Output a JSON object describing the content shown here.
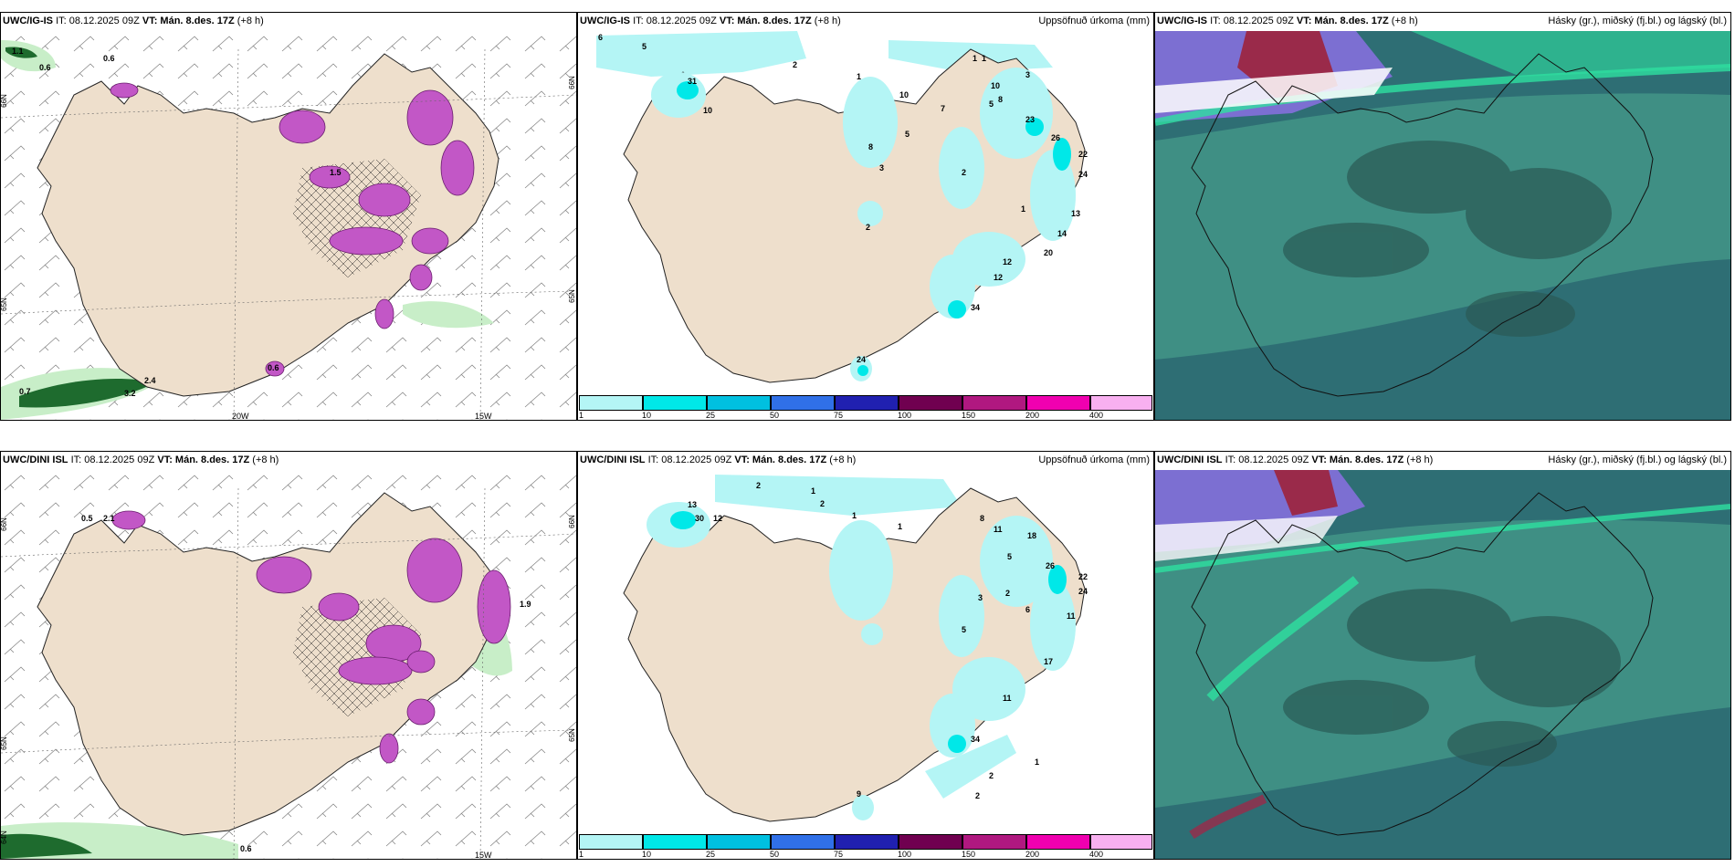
{
  "rows": [
    {
      "model": "UWC/IG-IS",
      "it_label": "IT: 08.12.2025 09Z",
      "vt_label": "VT: Mán. 8.des. 17Z",
      "lead": "(+8 h)"
    },
    {
      "model": "UWC/DINI ISL",
      "it_label": "IT: 08.12.2025 09Z",
      "vt_label": "VT: Mán. 8.des. 17Z",
      "lead": "(+8 h)"
    }
  ],
  "precip_title": "Uppsöfnuð úrkoma (mm)",
  "cloud_title": "Hásky (gr.), miðský (fj.bl.) og lágský (bl.)",
  "grid_labels": {
    "lat_66": "66N",
    "lat_65": "65N",
    "lat_64": "64N",
    "lon_20": "20W",
    "lon_15": "15W"
  },
  "colorbar": {
    "ticks": [
      "1",
      "10",
      "25",
      "50",
      "75",
      "100",
      "150",
      "200",
      "400"
    ],
    "colors": [
      "#b4f5f5",
      "#00e8e8",
      "#00c0e0",
      "#3070e8",
      "#2020b0",
      "#700050",
      "#b01880",
      "#f000b0",
      "#f8b0f0"
    ]
  },
  "wind_panel_values": {
    "top": [
      "1.1",
      "0.6",
      "0.6",
      "1.5",
      "0.7",
      "3.2",
      "2.4",
      "0.6"
    ],
    "bottom": [
      "0.5",
      "2.1",
      "0.6",
      "1.9"
    ]
  },
  "precip_values": {
    "top": [
      "6",
      "5",
      "2",
      "31",
      "10",
      "10",
      "5",
      "1",
      "1",
      "1",
      "1",
      "10",
      "3",
      "8",
      "23",
      "26",
      "22",
      "24",
      "7",
      "5",
      "13",
      "14",
      "20",
      "12",
      "12",
      "34",
      "24",
      "2",
      "2",
      "8",
      "3"
    ],
    "bottom": [
      "2",
      "1",
      "2",
      "13",
      "30",
      "12",
      "1",
      "1",
      "8",
      "11",
      "18",
      "26",
      "22",
      "24",
      "5",
      "6",
      "3",
      "2",
      "11",
      "17",
      "11",
      "34",
      "9",
      "2",
      "2",
      "1",
      "5"
    ]
  },
  "colors": {
    "land": "#eedfcc",
    "snow": "#c257c6",
    "lightgreen": "#c8eec8",
    "darkgreen": "#1e6b2e",
    "cyan_light": "#b4f5f5",
    "cloud_dark": "#2e6e74",
    "cloud_mid": "#3f8f84",
    "cloud_green": "#2ee0a0",
    "cloud_purple": "#7c6fd2",
    "cloud_red": "#9a2a4a"
  }
}
